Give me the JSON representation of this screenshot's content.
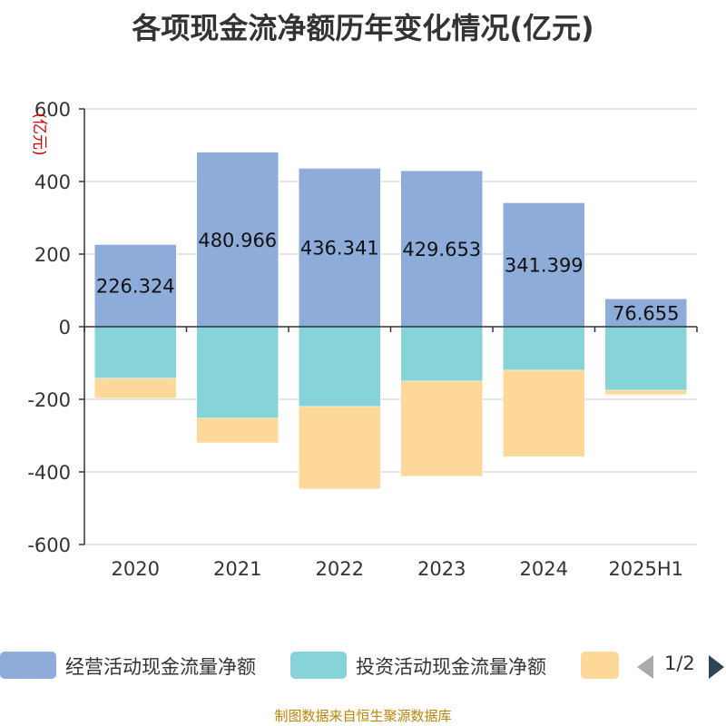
{
  "chart_data": {
    "type": "bar",
    "stacked": true,
    "title": "各项现金流净额历年变化情况(亿元)",
    "ylabel": "(亿元)",
    "ylim": [
      -600,
      600
    ],
    "yticks": [
      600,
      400,
      200,
      0,
      -200,
      -400,
      -600
    ],
    "categories": [
      "2020",
      "2021",
      "2022",
      "2023",
      "2024",
      "2025H1"
    ],
    "series": [
      {
        "name": "经营活动现金流量净额",
        "color": "#8eacd9",
        "values": [
          226.324,
          480.966,
          436.341,
          429.653,
          341.399,
          76.655
        ],
        "labels": [
          "226.324",
          "480.966",
          "436.341",
          "429.653",
          "341.399",
          "76.655"
        ]
      },
      {
        "name": "投资活动现金流量净额",
        "color": "#86d4d8",
        "values": [
          -142,
          -252,
          -220,
          -150,
          -120,
          -175
        ]
      },
      {
        "name": "",
        "color": "#fdd898",
        "values": [
          -55,
          -68,
          -227,
          -262,
          -238,
          -12
        ]
      }
    ],
    "grid": true,
    "legend": "bottom"
  },
  "legend": {
    "pager": "1/2"
  },
  "source": "制图数据来自恒生聚源数据库"
}
